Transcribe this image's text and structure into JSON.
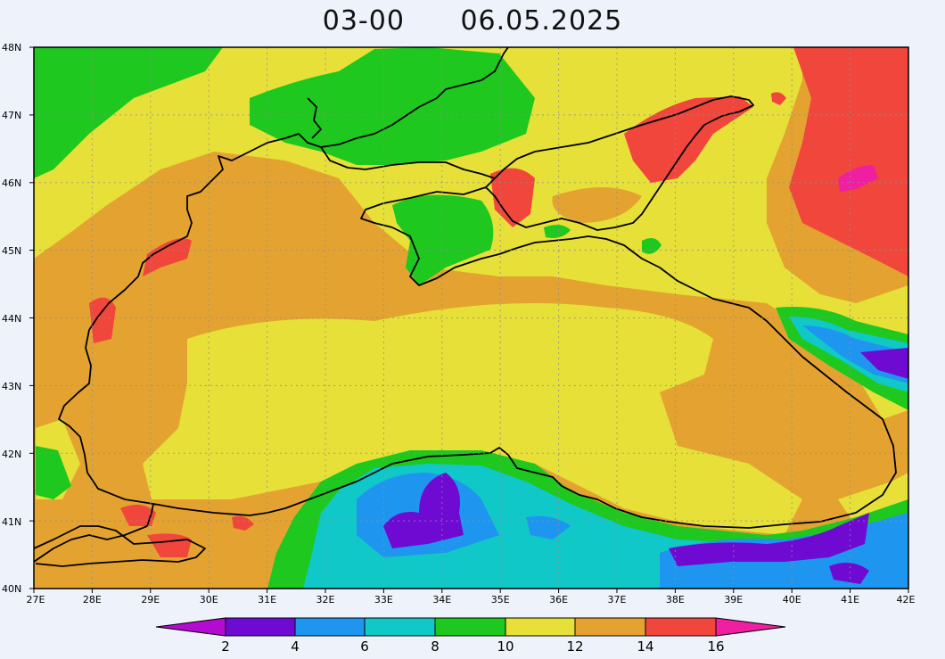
{
  "title": {
    "time": "03-00",
    "date": "06.05.2025"
  },
  "map": {
    "lat_range": [
      40,
      48
    ],
    "lon_range": [
      27,
      42
    ],
    "lat_labels": [
      "48N",
      "47N",
      "46N",
      "45N",
      "44N",
      "43N",
      "42N",
      "41N",
      "40N"
    ],
    "lon_labels": [
      "27E",
      "28E",
      "29E",
      "30E",
      "31E",
      "32E",
      "33E",
      "34E",
      "35E",
      "36E",
      "37E",
      "38E",
      "39E",
      "40E",
      "41E",
      "42E"
    ],
    "gridlines": "dotted",
    "background_color": "#e4a330"
  },
  "colorbar": {
    "levels": [
      "2",
      "4",
      "6",
      "8",
      "10",
      "12",
      "14",
      "16"
    ],
    "colors": {
      "below_2": "#b40ad2",
      "2_4": "#6e0ad2",
      "4_6": "#1e96f0",
      "6_8": "#10c8c8",
      "8_10": "#1ec81e",
      "10_12": "#e6e038",
      "12_14": "#e4a330",
      "14_16": "#f0463c",
      "above_16": "#f01ea0"
    }
  }
}
